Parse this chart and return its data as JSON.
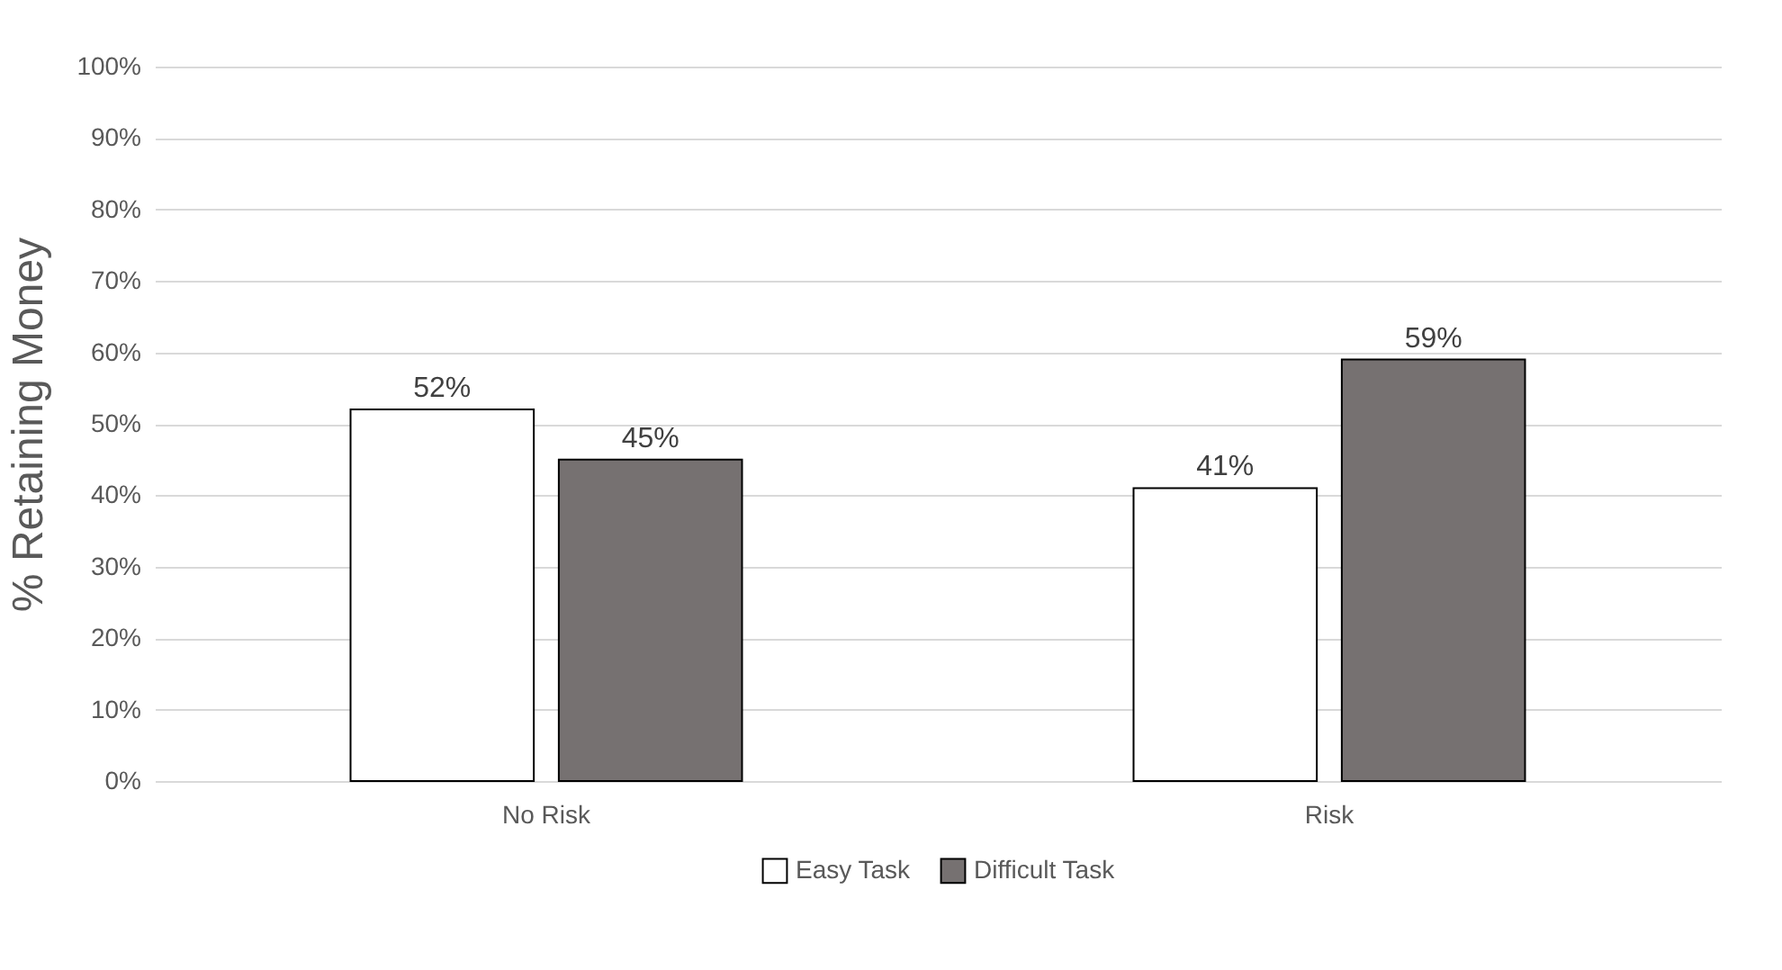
{
  "chart_data": {
    "type": "bar",
    "ylabel": "% Retaining Money",
    "categories": [
      "No Risk",
      "Risk"
    ],
    "series": [
      {
        "name": "Easy Task",
        "color": "#ffffff",
        "values": [
          52,
          41
        ],
        "value_labels": [
          "52%",
          "41%"
        ]
      },
      {
        "name": "Difficult Task",
        "color": "#767171",
        "values": [
          45,
          59
        ],
        "value_labels": [
          "45%",
          "59%"
        ]
      }
    ],
    "ylim": [
      0,
      100
    ],
    "yticks": [
      {
        "value": 0,
        "label": "0%"
      },
      {
        "value": 10,
        "label": "10%"
      },
      {
        "value": 20,
        "label": "20%"
      },
      {
        "value": 30,
        "label": "30%"
      },
      {
        "value": 40,
        "label": "40%"
      },
      {
        "value": 50,
        "label": "50%"
      },
      {
        "value": 60,
        "label": "60%"
      },
      {
        "value": 70,
        "label": "70%"
      },
      {
        "value": 80,
        "label": "80%"
      },
      {
        "value": 90,
        "label": "90%"
      },
      {
        "value": 100,
        "label": "100%"
      }
    ],
    "grid": "y",
    "legend": "bottom"
  }
}
